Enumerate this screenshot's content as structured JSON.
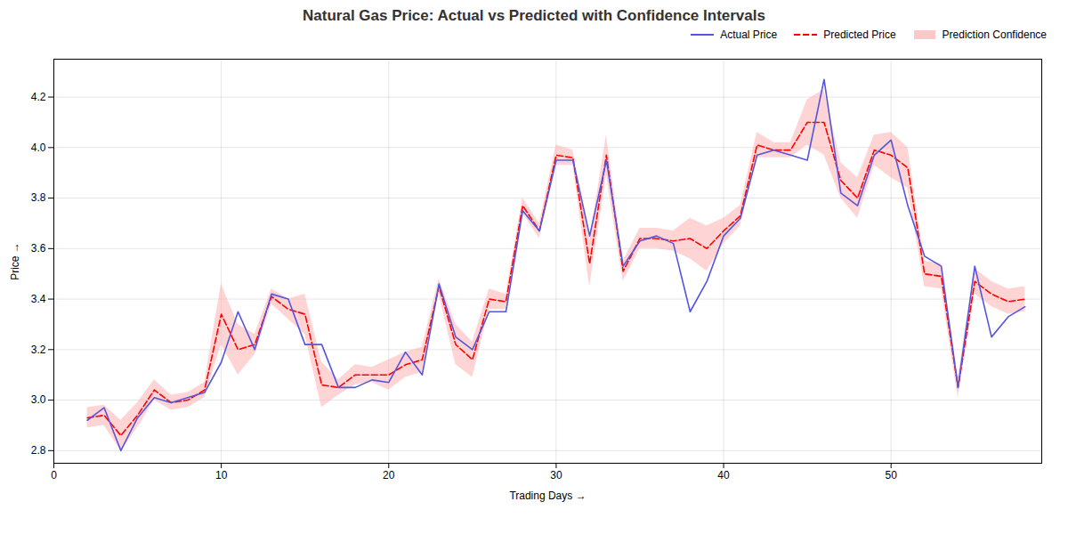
{
  "chart_data": {
    "type": "line",
    "title": "Natural Gas Price: Actual vs Predicted with Confidence Intervals",
    "xlabel": "Trading Days",
    "ylabel": "Price",
    "x": [
      2,
      3,
      4,
      5,
      6,
      7,
      8,
      9,
      10,
      11,
      12,
      13,
      14,
      15,
      16,
      17,
      18,
      19,
      20,
      21,
      22,
      23,
      24,
      25,
      26,
      27,
      28,
      29,
      30,
      31,
      32,
      33,
      34,
      35,
      36,
      37,
      38,
      39,
      40,
      41,
      42,
      43,
      44,
      45,
      46,
      47,
      48,
      49,
      50,
      51,
      52,
      53,
      54,
      55,
      56,
      57,
      58
    ],
    "series": [
      {
        "name": "Actual Price",
        "color": "#5555dd",
        "line_style": "solid",
        "values": [
          2.92,
          2.97,
          2.8,
          2.93,
          3.01,
          2.99,
          3.01,
          3.03,
          3.15,
          3.35,
          3.2,
          3.42,
          3.4,
          3.22,
          3.22,
          3.05,
          3.05,
          3.08,
          3.07,
          3.19,
          3.1,
          3.46,
          3.25,
          3.2,
          3.35,
          3.35,
          3.75,
          3.67,
          3.95,
          3.95,
          3.65,
          3.95,
          3.53,
          3.63,
          3.65,
          3.62,
          3.35,
          3.47,
          3.65,
          3.72,
          3.97,
          3.99,
          3.97,
          3.95,
          4.27,
          3.82,
          3.77,
          3.97,
          4.03,
          3.77,
          3.57,
          3.53,
          3.05,
          3.53,
          3.25,
          3.33,
          3.37
        ]
      },
      {
        "name": "Predicted Price",
        "color": "#ff0000",
        "line_style": "dashed",
        "values": [
          2.93,
          2.94,
          2.86,
          2.94,
          3.04,
          2.99,
          3.0,
          3.04,
          3.34,
          3.2,
          3.22,
          3.41,
          3.36,
          3.34,
          3.06,
          3.05,
          3.1,
          3.1,
          3.1,
          3.14,
          3.16,
          3.45,
          3.22,
          3.16,
          3.4,
          3.39,
          3.77,
          3.67,
          3.97,
          3.96,
          3.54,
          3.97,
          3.51,
          3.64,
          3.64,
          3.63,
          3.64,
          3.6,
          3.67,
          3.73,
          4.01,
          3.99,
          3.99,
          4.1,
          4.1,
          3.87,
          3.8,
          3.99,
          3.97,
          3.92,
          3.5,
          3.49,
          3.05,
          3.47,
          3.42,
          3.39,
          3.4
        ]
      },
      {
        "name": "Prediction Confidence",
        "type": "band",
        "color": "#ffb0b0",
        "lower": [
          2.89,
          2.9,
          2.8,
          2.89,
          3.0,
          2.96,
          2.97,
          3.01,
          3.22,
          3.1,
          3.18,
          3.38,
          3.32,
          3.26,
          2.97,
          3.02,
          3.06,
          3.07,
          3.04,
          3.09,
          3.11,
          3.42,
          3.14,
          3.09,
          3.36,
          3.36,
          3.74,
          3.64,
          3.93,
          3.93,
          3.45,
          3.89,
          3.47,
          3.6,
          3.6,
          3.59,
          3.56,
          3.51,
          3.62,
          3.69,
          3.96,
          3.96,
          3.96,
          4.01,
          3.97,
          3.8,
          3.72,
          3.93,
          3.88,
          3.84,
          3.45,
          3.44,
          3.01,
          3.42,
          3.37,
          3.34,
          3.35
        ],
        "upper": [
          2.97,
          2.98,
          2.92,
          2.99,
          3.08,
          3.02,
          3.03,
          3.07,
          3.46,
          3.3,
          3.26,
          3.44,
          3.4,
          3.42,
          3.15,
          3.08,
          3.14,
          3.13,
          3.16,
          3.19,
          3.21,
          3.48,
          3.3,
          3.23,
          3.44,
          3.42,
          3.8,
          3.7,
          4.01,
          3.99,
          3.63,
          4.05,
          3.55,
          3.68,
          3.68,
          3.67,
          3.72,
          3.69,
          3.72,
          3.77,
          4.06,
          4.02,
          4.02,
          4.19,
          4.23,
          3.94,
          3.88,
          4.05,
          4.06,
          4.0,
          3.55,
          3.54,
          3.09,
          3.52,
          3.47,
          3.44,
          3.45
        ]
      }
    ],
    "xlim": [
      0,
      59
    ],
    "ylim": [
      2.75,
      4.35
    ],
    "xticks": [
      0,
      10,
      20,
      30,
      40,
      50
    ],
    "yticks": [
      2.8,
      {
        "value": 3,
        "label": "3.0"
      },
      3.2,
      3.4,
      3.6,
      3.8,
      {
        "value": 4,
        "label": "4.0"
      },
      4.2
    ],
    "grid": true,
    "legend": "upper right"
  }
}
